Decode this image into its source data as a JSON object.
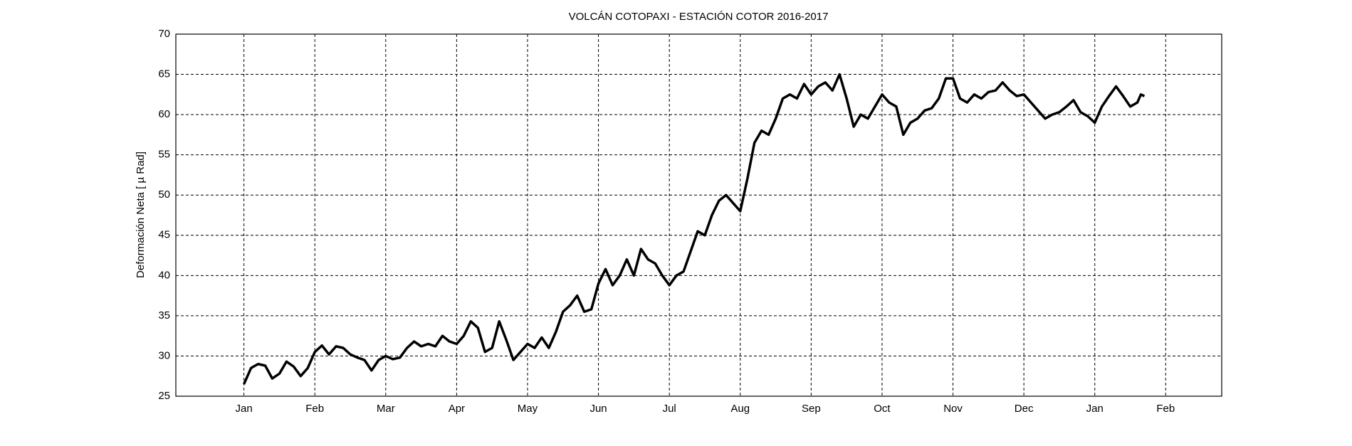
{
  "chart_data": {
    "type": "line",
    "title": "VOLCÁN COTOPAXI - ESTACIÓN COTOR 2016-2017",
    "ylabel": "Deformación Neta [ µ Rad]",
    "x": [
      0,
      0.1,
      0.2,
      0.3,
      0.4,
      0.5,
      0.6,
      0.7,
      0.8,
      0.9,
      1.0,
      1.1,
      1.2,
      1.3,
      1.4,
      1.5,
      1.6,
      1.7,
      1.8,
      1.9,
      2.0,
      2.1,
      2.2,
      2.3,
      2.4,
      2.5,
      2.6,
      2.7,
      2.8,
      2.9,
      3.0,
      3.1,
      3.2,
      3.3,
      3.4,
      3.5,
      3.6,
      3.7,
      3.8,
      3.9,
      4.0,
      4.1,
      4.2,
      4.3,
      4.4,
      4.5,
      4.6,
      4.7,
      4.8,
      4.9,
      5.0,
      5.1,
      5.2,
      5.3,
      5.4,
      5.5,
      5.6,
      5.7,
      5.8,
      5.9,
      6.0,
      6.1,
      6.2,
      6.3,
      6.4,
      6.5,
      6.6,
      6.7,
      6.8,
      6.9,
      7.0,
      7.1,
      7.2,
      7.3,
      7.4,
      7.5,
      7.6,
      7.7,
      7.8,
      7.9,
      8.0,
      8.1,
      8.2,
      8.3,
      8.4,
      8.5,
      8.6,
      8.7,
      8.8,
      8.9,
      9.0,
      9.1,
      9.2,
      9.3,
      9.4,
      9.5,
      9.6,
      9.7,
      9.8,
      9.9,
      10.0,
      10.1,
      10.2,
      10.3,
      10.4,
      10.5,
      10.6,
      10.7,
      10.8,
      10.9,
      11.0,
      11.1,
      11.2,
      11.3,
      11.4,
      11.5,
      11.6,
      11.7,
      11.8,
      11.9,
      12.0,
      12.1,
      12.2,
      12.3,
      12.4,
      12.5,
      12.6,
      12.65,
      12.7
    ],
    "series": [
      {
        "color": "#000000",
        "values": [
          26.5,
          28.5,
          29,
          28.8,
          27.2,
          27.8,
          29.3,
          28.7,
          27.5,
          28.5,
          30.5,
          31.3,
          30.2,
          31.2,
          31,
          30.2,
          29.8,
          29.5,
          28.2,
          29.5,
          30,
          29.6,
          29.8,
          31,
          31.8,
          31.2,
          31.5,
          31.2,
          32.5,
          31.8,
          31.5,
          32.5,
          34.3,
          33.5,
          30.5,
          31,
          34.3,
          32,
          29.5,
          30.5,
          31.5,
          31,
          32.3,
          31,
          33,
          35.5,
          36.3,
          37.5,
          35.5,
          35.8,
          39,
          40.8,
          38.8,
          40,
          42,
          40,
          43.3,
          42,
          41.5,
          40,
          38.8,
          40,
          40.5,
          43,
          45.5,
          45,
          47.5,
          49.3,
          50,
          49,
          48,
          52,
          56.5,
          58,
          57.5,
          59.5,
          62,
          62.5,
          62,
          63.8,
          62.5,
          63.5,
          64,
          63,
          65,
          62,
          58.5,
          60,
          59.5,
          61,
          62.5,
          61.5,
          61,
          57.5,
          59,
          59.5,
          60.5,
          60.8,
          62,
          64.5,
          64.5,
          62,
          61.5,
          62.5,
          62,
          62.8,
          63,
          64,
          63,
          62.3,
          62.5,
          61.5,
          60.5,
          59.5,
          60,
          60.3,
          61,
          61.8,
          60.3,
          59.8,
          59,
          61,
          62.3,
          63.5,
          62.3,
          61,
          61.5,
          62.5,
          62.3
        ]
      }
    ],
    "xlim": [
      -0.96,
      13.79
    ],
    "xticks": [
      {
        "value": 0,
        "label": "Jan"
      },
      {
        "value": 1,
        "label": "Feb"
      },
      {
        "value": 2,
        "label": "Mar"
      },
      {
        "value": 3,
        "label": "Apr"
      },
      {
        "value": 4,
        "label": "May"
      },
      {
        "value": 5,
        "label": "Jun"
      },
      {
        "value": 6,
        "label": "Jul"
      },
      {
        "value": 7,
        "label": "Aug"
      },
      {
        "value": 8,
        "label": "Sep"
      },
      {
        "value": 9,
        "label": "Oct"
      },
      {
        "value": 10,
        "label": "Nov"
      },
      {
        "value": 11,
        "label": "Dec"
      },
      {
        "value": 12,
        "label": "Jan"
      },
      {
        "value": 13,
        "label": "Feb"
      }
    ],
    "ylim": [
      25,
      70
    ],
    "yticks": [
      25,
      30,
      35,
      40,
      45,
      50,
      55,
      60,
      65,
      70
    ],
    "grid": true
  }
}
